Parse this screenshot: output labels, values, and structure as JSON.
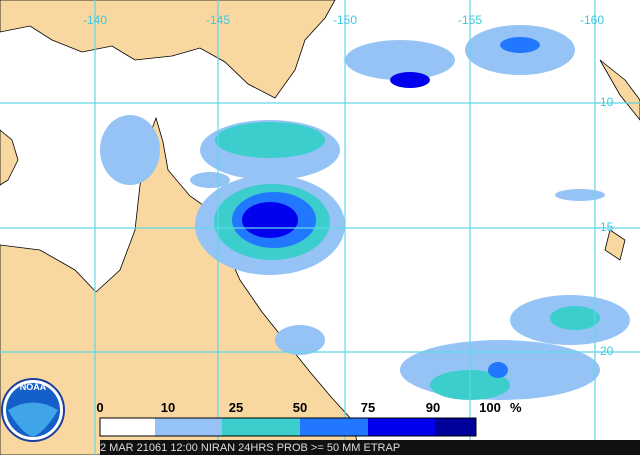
{
  "map": {
    "longitude_labels": [
      "-140",
      "-145",
      "-150",
      "-155",
      "-160"
    ],
    "latitude_labels": [
      "-10",
      "-15",
      "-20"
    ]
  },
  "legend": {
    "labels": [
      "0",
      "10",
      "25",
      "50",
      "75",
      "90",
      "100"
    ],
    "unit": "%",
    "colors": [
      "#ffffff",
      "#96c3f5",
      "#3ccdcd",
      "#2277ff",
      "#0000ee",
      "#00009a"
    ]
  },
  "logo": "NOAA",
  "caption": "2 MAR 21061 12:00 NIRAN 24HRS PROB >= 50 MM ETRAP"
}
